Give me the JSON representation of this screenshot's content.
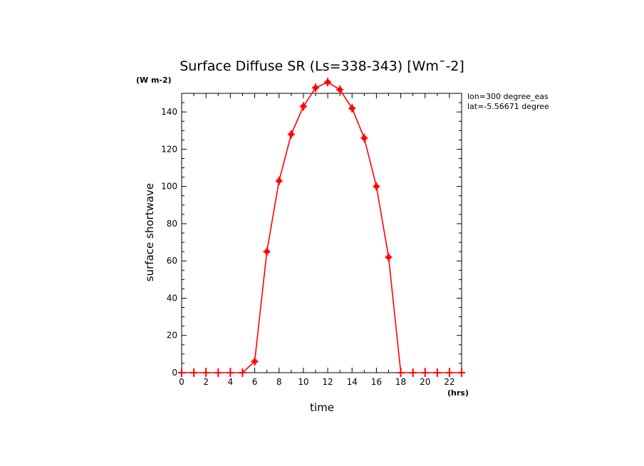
{
  "chart_data": {
    "type": "line",
    "title": "Surface Diffuse SR (Ls=338-343) [Wm¯-2]",
    "y_unit": "(W m-2)",
    "x_unit": "(hrs)",
    "xlabel": "time",
    "ylabel": "surface shortwave",
    "xlim": [
      0,
      23
    ],
    "ylim": [
      0,
      150
    ],
    "x_ticks": [
      0,
      2,
      4,
      6,
      8,
      10,
      12,
      14,
      16,
      18,
      20,
      22
    ],
    "y_ticks": [
      0,
      20,
      40,
      60,
      80,
      100,
      120,
      140
    ],
    "annotations": [
      "lon=300 degree_eas",
      "lat=-5.56671 degree"
    ],
    "grid": false,
    "color": "#ff0000",
    "series": [
      {
        "x": [
          0,
          1,
          2,
          3,
          4,
          5,
          6,
          7,
          8,
          9,
          10,
          11,
          12,
          13,
          14,
          15,
          16,
          17,
          18,
          19,
          20,
          21,
          22,
          23
        ],
        "values": [
          0,
          0,
          0,
          0,
          0,
          0,
          6,
          65,
          103,
          128,
          143,
          153,
          156,
          152,
          142,
          126,
          100,
          62,
          0,
          0,
          0,
          0,
          0,
          0
        ]
      }
    ]
  }
}
